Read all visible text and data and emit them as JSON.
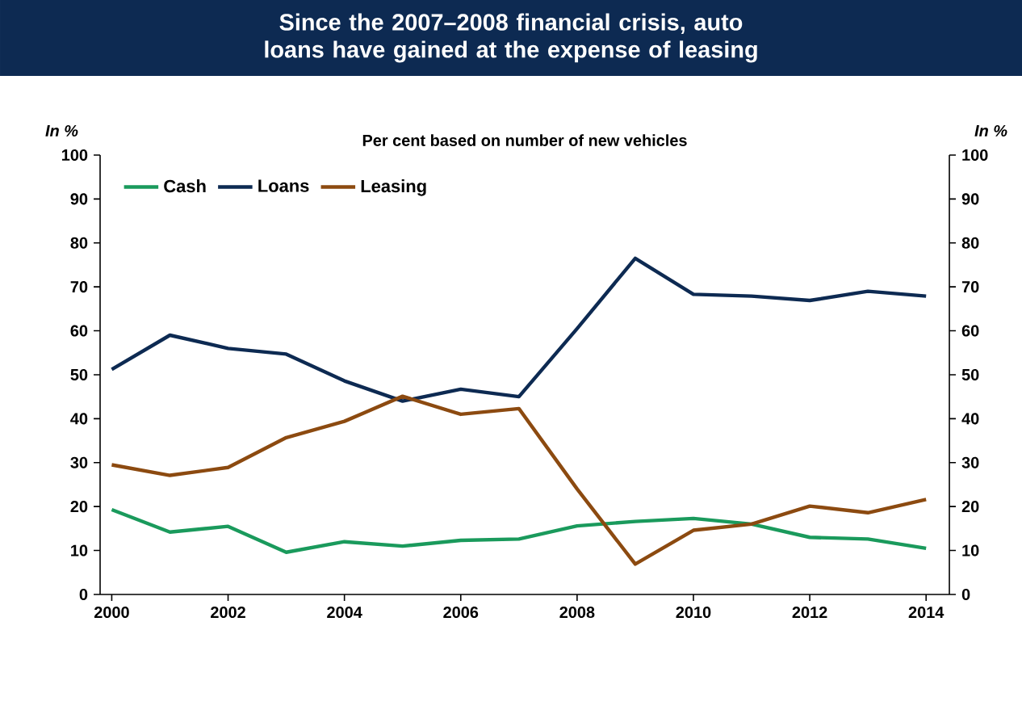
{
  "chart_data": {
    "type": "line",
    "title": "Since the 2007–2008 financial crisis, auto loans have gained at the expense of leasing",
    "subtitle": "Per cent based on number of new vehicles",
    "ylabel": "In %",
    "y2label": "In %",
    "x": [
      2000,
      2001,
      2002,
      2003,
      2004,
      2005,
      2006,
      2007,
      2008,
      2009,
      2010,
      2011,
      2012,
      2013,
      2014
    ],
    "xlim": [
      1999.8,
      2014.4
    ],
    "xticks": [
      2000,
      2002,
      2004,
      2006,
      2008,
      2010,
      2012,
      2014
    ],
    "ylim": [
      0,
      100
    ],
    "yticks": [
      0,
      10,
      20,
      30,
      40,
      50,
      60,
      70,
      80,
      90,
      100
    ],
    "y2lim": [
      0,
      100
    ],
    "y2ticks": [
      0,
      10,
      20,
      30,
      40,
      50,
      60,
      70,
      80,
      90,
      100
    ],
    "legend": "top left",
    "grid": false,
    "marker": "none",
    "line_style": "solid",
    "series": [
      {
        "name": "Cash",
        "color": "#1a9a5c",
        "values": [
          19.3,
          14.2,
          15.5,
          9.6,
          12,
          11,
          12.3,
          12.6,
          15.6,
          16.6,
          17.3,
          16,
          13,
          12.6,
          10.5
        ]
      },
      {
        "name": "Loans",
        "color": "#0d2a52",
        "values": [
          51.2,
          59,
          56,
          54.7,
          48.6,
          44,
          46.7,
          45,
          60.5,
          76.5,
          68.3,
          67.9,
          66.9,
          69,
          67.9
        ]
      },
      {
        "name": "Leasing",
        "color": "#8c4a10",
        "values": [
          29.5,
          27.1,
          28.9,
          35.7,
          39.4,
          45.1,
          41,
          42.3,
          24,
          6.9,
          14.6,
          16,
          20.1,
          18.6,
          21.6
        ]
      }
    ]
  }
}
